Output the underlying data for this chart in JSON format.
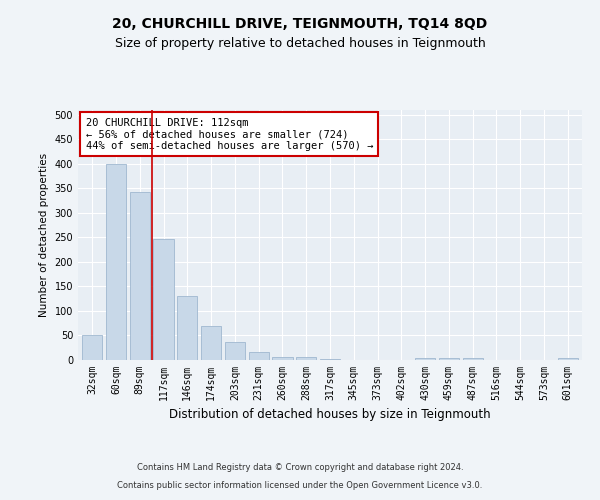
{
  "title": "20, CHURCHILL DRIVE, TEIGNMOUTH, TQ14 8QD",
  "subtitle": "Size of property relative to detached houses in Teignmouth",
  "xlabel": "Distribution of detached houses by size in Teignmouth",
  "ylabel": "Number of detached properties",
  "categories": [
    "32sqm",
    "60sqm",
    "89sqm",
    "117sqm",
    "146sqm",
    "174sqm",
    "203sqm",
    "231sqm",
    "260sqm",
    "288sqm",
    "317sqm",
    "345sqm",
    "373sqm",
    "402sqm",
    "430sqm",
    "459sqm",
    "487sqm",
    "516sqm",
    "544sqm",
    "573sqm",
    "601sqm"
  ],
  "values": [
    50,
    400,
    343,
    246,
    130,
    70,
    36,
    16,
    7,
    7,
    3,
    0,
    0,
    0,
    5,
    4,
    5,
    0,
    0,
    0,
    4
  ],
  "bar_color": "#c8d8e8",
  "bar_edge_color": "#a0b8d0",
  "red_line_x": 2.5,
  "annotation_title": "20 CHURCHILL DRIVE: 112sqm",
  "annotation_line1": "← 56% of detached houses are smaller (724)",
  "annotation_line2": "44% of semi-detached houses are larger (570) →",
  "ylim": [
    0,
    510
  ],
  "yticks": [
    0,
    50,
    100,
    150,
    200,
    250,
    300,
    350,
    400,
    450,
    500
  ],
  "footer1": "Contains HM Land Registry data © Crown copyright and database right 2024.",
  "footer2": "Contains public sector information licensed under the Open Government Licence v3.0.",
  "bg_color": "#f0f4f8",
  "plot_bg_color": "#e8eef4",
  "grid_color": "#ffffff",
  "title_fontsize": 10,
  "subtitle_fontsize": 9,
  "annotation_box_color": "#ffffff",
  "annotation_box_edge": "#cc0000",
  "annotation_fontsize": 7.5,
  "footer_fontsize": 6.0,
  "ylabel_fontsize": 7.5,
  "xlabel_fontsize": 8.5,
  "tick_fontsize": 7.0
}
